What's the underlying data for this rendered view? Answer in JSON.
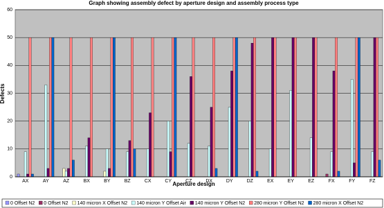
{
  "chart_data": {
    "type": "bar",
    "title": "Graph showing assembly defect by aperture design and assembly process type",
    "x_label": "Aperture design",
    "y_label": "Defects",
    "categories": [
      "AX",
      "AY",
      "AZ",
      "BX",
      "BY",
      "BZ",
      "CX",
      "CY",
      "CZ",
      "DX",
      "DY",
      "DZ",
      "EX",
      "EY",
      "EZ",
      "FX",
      "FY",
      "FZ"
    ],
    "series": [
      {
        "name": "0 Offset N2",
        "color": "#9999FF",
        "values": [
          1,
          0,
          0,
          0,
          0,
          0,
          0,
          0,
          0,
          0,
          0,
          0,
          0,
          0,
          0,
          0,
          0,
          0
        ]
      },
      {
        "name": "0 Offset N2",
        "color": "#993366",
        "values": [
          0,
          0,
          0,
          0,
          0,
          0,
          0,
          0,
          0,
          0,
          0,
          0,
          0,
          0,
          0,
          1,
          0,
          0
        ]
      },
      {
        "name": "140 micron X Offset N2",
        "color": "#FFFFCC",
        "values": [
          0,
          0,
          3,
          0,
          2,
          0,
          0,
          0,
          0,
          0,
          0,
          0,
          0,
          0,
          0,
          0,
          0,
          0
        ]
      },
      {
        "name": "140 micron Y Offset Air",
        "color": "#CCFFFF",
        "values": [
          9,
          33,
          2,
          11,
          10,
          9,
          10,
          20,
          12,
          11,
          25,
          20,
          10,
          31,
          14,
          9,
          35,
          9
        ]
      },
      {
        "name": "140 micron Y Offset N2",
        "color": "#660066",
        "values": [
          1,
          3,
          3,
          14,
          3,
          13,
          23,
          9,
          36,
          25,
          38,
          48,
          50,
          50,
          50,
          38,
          5,
          50
        ]
      },
      {
        "name": "280 micron Y Offset N2",
        "color": "#FF8080",
        "values": [
          50,
          50,
          50,
          50,
          50,
          50,
          50,
          50,
          50,
          50,
          50,
          50,
          50,
          50,
          50,
          50,
          50,
          50
        ]
      },
      {
        "name": "280 micron X Offset N2",
        "color": "#0066CC",
        "values": [
          1,
          50,
          6,
          0,
          50,
          10,
          0,
          50,
          0,
          3,
          50,
          2,
          0,
          0,
          0,
          2,
          50,
          6
        ]
      }
    ],
    "ylim": [
      0,
      60
    ],
    "yticks": [
      0,
      10,
      20,
      30,
      40,
      50,
      60
    ],
    "grid": true
  }
}
